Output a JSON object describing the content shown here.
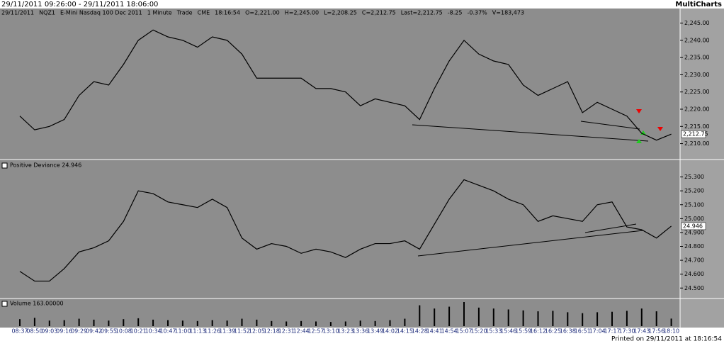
{
  "window": {
    "title": "29/11/2011 09:26:00 - 29/11/2011 18:06:00",
    "app": "MultiCharts"
  },
  "footer": "Printed on 29/11/2011 at 18:16:54",
  "chart_data": [
    {
      "type": "line",
      "color": "#000000",
      "header_fields": [
        "29/11/2011",
        "NQZ1",
        "E-Mini Nasdaq 100 Dec 2011",
        "1 Minute",
        "Trade",
        "CME",
        "18:16:54",
        "O=2,221.00",
        "H=2,245.00",
        "L=2,208.25",
        "C=2,212.75",
        "Last=2,212.75",
        "-8.25",
        "-0.37%",
        "V=183,473"
      ],
      "categories": [
        "08:37",
        "08:50",
        "09:03",
        "09:16",
        "09:29",
        "09:42",
        "09:55",
        "10:08",
        "10:21",
        "10:34",
        "10:47",
        "11:00",
        "11:13",
        "11:26",
        "11:39",
        "11:52",
        "12:05",
        "12:18",
        "12:31",
        "12:44",
        "12:57",
        "13:10",
        "13:23",
        "13:36",
        "13:49",
        "14:02",
        "14:15",
        "14:28",
        "14:41",
        "14:54",
        "15:07",
        "15:20",
        "15:33",
        "15:46",
        "15:59",
        "16:12",
        "16:25",
        "16:38",
        "16:51",
        "17:04",
        "17:17",
        "17:30",
        "17:43",
        "17:56",
        "18:10"
      ],
      "values": [
        2218,
        2214,
        2215,
        2217,
        2224,
        2228,
        2227,
        2233,
        2240,
        2243,
        2241,
        2240,
        2238,
        2241,
        2240,
        2236,
        2229,
        2229,
        2229,
        2229,
        2226,
        2226,
        2225,
        2221,
        2223,
        2222,
        2221,
        2217,
        2226,
        2234,
        2240,
        2236,
        2234,
        2233,
        2227,
        2224,
        2226,
        2228,
        2219,
        2222,
        2220,
        2218,
        2213,
        2211,
        2212.75
      ],
      "last": {
        "value": 2212.75,
        "label": "2,212.75"
      },
      "ylim": [
        2206,
        2248
      ],
      "yticks": [
        {
          "value": 2210,
          "label": "2,210.00"
        },
        {
          "value": 2215,
          "label": "2,215.00"
        },
        {
          "value": 2220,
          "label": "2,220.00"
        },
        {
          "value": 2225,
          "label": "2,225.00"
        },
        {
          "value": 2230,
          "label": "2,230.00"
        },
        {
          "value": 2235,
          "label": "2,235.00"
        },
        {
          "value": 2240,
          "label": "2,240.00"
        },
        {
          "value": 2245,
          "label": "2,245.00"
        }
      ]
    },
    {
      "type": "line",
      "color": "#000000",
      "title": "Positive Deviance  24.946",
      "values": [
        24.62,
        24.55,
        24.55,
        24.64,
        24.76,
        24.79,
        24.84,
        24.98,
        25.2,
        25.18,
        25.12,
        25.1,
        25.08,
        25.14,
        25.08,
        24.86,
        24.78,
        24.82,
        24.8,
        24.75,
        24.78,
        24.76,
        24.72,
        24.78,
        24.82,
        24.82,
        24.84,
        24.78,
        24.96,
        25.14,
        25.28,
        25.24,
        25.2,
        25.14,
        25.1,
        24.98,
        25.02,
        25,
        24.98,
        25.1,
        25.12,
        24.94,
        24.92,
        24.86,
        24.946
      ],
      "last": {
        "value": 24.946,
        "label": "24.946"
      },
      "ylim": [
        24.44,
        25.4
      ],
      "yticks": [
        {
          "value": 24.5,
          "label": "24.500"
        },
        {
          "value": 24.6,
          "label": "24.600"
        },
        {
          "value": 24.7,
          "label": "24.700"
        },
        {
          "value": 24.8,
          "label": "24.800"
        },
        {
          "value": 24.9,
          "label": "24.900"
        },
        {
          "value": 25.0,
          "label": "25.000"
        },
        {
          "value": 25.1,
          "label": "25.100"
        },
        {
          "value": 25.2,
          "label": "25.200"
        },
        {
          "value": 25.3,
          "label": "25.300"
        }
      ]
    },
    {
      "type": "bar",
      "color": "#000000",
      "title": "Volume  163.00000",
      "values": [
        150,
        180,
        120,
        130,
        160,
        140,
        120,
        150,
        170,
        140,
        130,
        120,
        110,
        130,
        120,
        160,
        140,
        110,
        100,
        110,
        100,
        90,
        100,
        120,
        110,
        130,
        160,
        450,
        380,
        420,
        520,
        400,
        380,
        360,
        340,
        320,
        330,
        300,
        280,
        300,
        310,
        330,
        380,
        320,
        163
      ]
    }
  ]
}
